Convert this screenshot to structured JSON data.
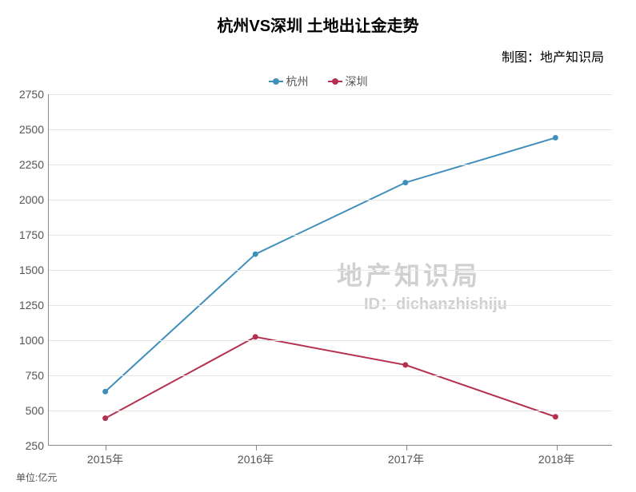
{
  "chart": {
    "type": "line",
    "title": "杭州VS深圳  土地出让金走势",
    "title_fontsize": 20,
    "credit": "制图：地产知识局",
    "credit_fontsize": 16,
    "unit_label": "单位:亿元",
    "unit_fontsize": 12,
    "background_color": "#ffffff",
    "grid_color": "#e6e6e6",
    "axis_color": "#888888",
    "tick_label_color": "#555555",
    "tick_fontsize": 14,
    "xlabels": [
      "2015年",
      "2016年",
      "2017年",
      "2018年"
    ],
    "ylim": [
      250,
      2750
    ],
    "ytick_step": 250,
    "yticks": [
      250,
      500,
      750,
      1000,
      1250,
      1500,
      1750,
      2000,
      2250,
      2500,
      2750
    ],
    "legend_fontsize": 14,
    "series": [
      {
        "name": "杭州",
        "color": "#3f8fba",
        "line_width": 2,
        "marker": "circle",
        "marker_size": 7,
        "values": [
          630,
          1610,
          2120,
          2440
        ]
      },
      {
        "name": "深圳",
        "color": "#b4304e",
        "line_width": 2,
        "marker": "circle",
        "marker_size": 7,
        "values": [
          440,
          1020,
          820,
          450
        ]
      }
    ],
    "watermark": {
      "line1": "地产知识局",
      "line2": "ID：dichanzhishiju",
      "color": "#d0d0d0",
      "fontsize1": 32,
      "fontsize2": 20
    }
  }
}
